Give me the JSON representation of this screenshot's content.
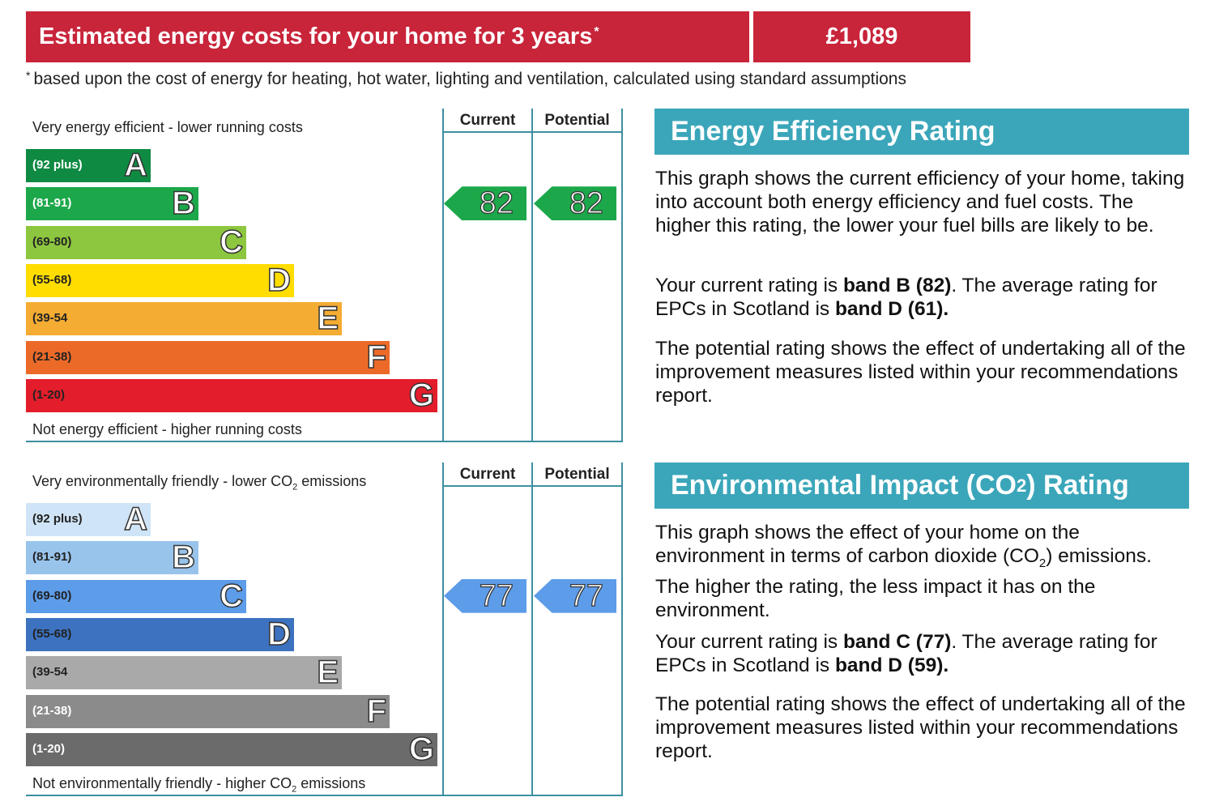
{
  "banner": {
    "title": "Estimated energy costs for your home for 3 years",
    "title_mark": "*",
    "value": "£1,089",
    "color": "#c8243a"
  },
  "footnote": {
    "mark": "*",
    "text": "based upon the cost of energy for heating, hot water, lighting and ventilation, calculated using standard assumptions"
  },
  "chart_data": [
    {
      "type": "bar",
      "categories": [
        "(92 plus)",
        "(81-91)",
        "(69-80)",
        "(55-68)",
        "(39-54",
        "(21-38)",
        "(1-20)"
      ],
      "letters": [
        "A",
        "B",
        "C",
        "D",
        "E",
        "F",
        "G"
      ],
      "band_colors": [
        "#0f8a43",
        "#1ca84a",
        "#8dc63f",
        "#ffdd00",
        "#f4ac33",
        "#ec6a28",
        "#e31d2b"
      ],
      "range_text_colors": [
        "#ffffff",
        "#ffffff",
        "#222222",
        "#222222",
        "#222222",
        "#222222",
        "#222222"
      ],
      "top_label": "Very energy efficient - lower running costs",
      "bottom_label": "Not energy efficient - higher running costs",
      "col_current": "Current",
      "col_potential": "Potential",
      "current": 82,
      "potential": 82,
      "current_band": "B",
      "potential_band": "B"
    },
    {
      "type": "bar",
      "categories": [
        "(92 plus)",
        "(81-91)",
        "(69-80)",
        "(55-68)",
        "(39-54",
        "(21-38)",
        "(1-20)"
      ],
      "letters": [
        "A",
        "B",
        "C",
        "D",
        "E",
        "F",
        "G"
      ],
      "band_colors": [
        "#cfe4f6",
        "#98c4ec",
        "#5d9ce8",
        "#3d72c0",
        "#a9a9a9",
        "#8b8b8b",
        "#6b6b6b"
      ],
      "range_text_colors": [
        "#222222",
        "#222222",
        "#222222",
        "#222222",
        "#222222",
        "#ffffff",
        "#ffffff"
      ],
      "top_label": "Very environmentally friendly - lower CO",
      "top_label_sub": "2",
      "top_label_end": " emissions",
      "bottom_label": "Not environmentally friendly - higher CO",
      "bottom_label_sub": "2",
      "bottom_label_end": " emissions",
      "col_current": "Current",
      "col_potential": "Potential",
      "current": 77,
      "potential": 77,
      "current_band": "C",
      "potential_band": "C"
    }
  ],
  "energy_panel": {
    "title": "Energy Efficiency Rating",
    "p1": "This graph shows the current efficiency of your home, taking into account both energy efficiency and fuel costs. The higher this rating, the lower your fuel bills are likely to be.",
    "p2_a": "Your current rating is ",
    "p2_b": "band B (82)",
    "p2_c": ". The average rating for EPCs in Scotland is ",
    "p2_d": "band D (61).",
    "p3": "The potential rating shows the effect of undertaking all of the improvement measures listed within your recommendations report."
  },
  "env_panel": {
    "title_a": "Environmental Impact (CO",
    "title_sub": "2",
    "title_b": ") Rating",
    "p1_a": "This graph shows the effect of your home on the environment in terms of carbon dioxide (CO",
    "p1_sub": "2",
    "p1_b": ") emissions. The higher the rating, the less impact it has on the environment.",
    "p2_a": "Your current rating is ",
    "p2_b": "band C (77)",
    "p2_c": ". The average rating for EPCs in Scotland is ",
    "p2_d": "band D (59).",
    "p3": "The potential rating shows the effect of undertaking all of the improvement measures listed within your recommendations report."
  },
  "colors": {
    "panel_header": "#3ba6ba",
    "gridline": "#3d8fa1"
  }
}
